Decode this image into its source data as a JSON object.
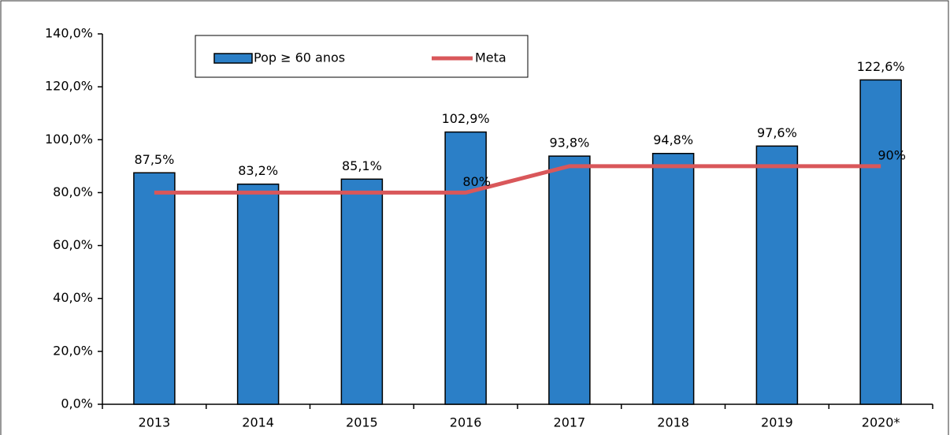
{
  "chart_data": {
    "type": "bar",
    "categories": [
      "2013",
      "2014",
      "2015",
      "2016",
      "2017",
      "2018",
      "2019",
      "2020*"
    ],
    "series": [
      {
        "name": "Pop ≥ 60 anos",
        "type": "bar",
        "color": "#2b7fc7",
        "values": [
          87.5,
          83.2,
          85.1,
          102.9,
          93.8,
          94.8,
          97.6,
          122.6
        ],
        "value_labels": [
          "87,5%",
          "83,2%",
          "85,1%",
          "102,9%",
          "93,8%",
          "94,8%",
          "97,6%",
          "122,6%"
        ]
      },
      {
        "name": "Meta",
        "type": "line",
        "color": "#d9575a",
        "values": [
          80,
          80,
          80,
          80,
          90,
          90,
          90,
          90
        ],
        "value_labels": [
          null,
          null,
          null,
          "80%",
          null,
          null,
          null,
          "90%"
        ]
      }
    ],
    "ylim": [
      0,
      140
    ],
    "yticks": [
      {
        "value": 0,
        "label": "0,0%"
      },
      {
        "value": 20,
        "label": "20,0%"
      },
      {
        "value": 40,
        "label": "40,0%"
      },
      {
        "value": 60,
        "label": "60,0%"
      },
      {
        "value": 80,
        "label": "80,0%"
      },
      {
        "value": 100,
        "label": "100,0%"
      },
      {
        "value": 120,
        "label": "120,0%"
      },
      {
        "value": 140,
        "label": "140,0%"
      }
    ],
    "legend": "top-left"
  }
}
